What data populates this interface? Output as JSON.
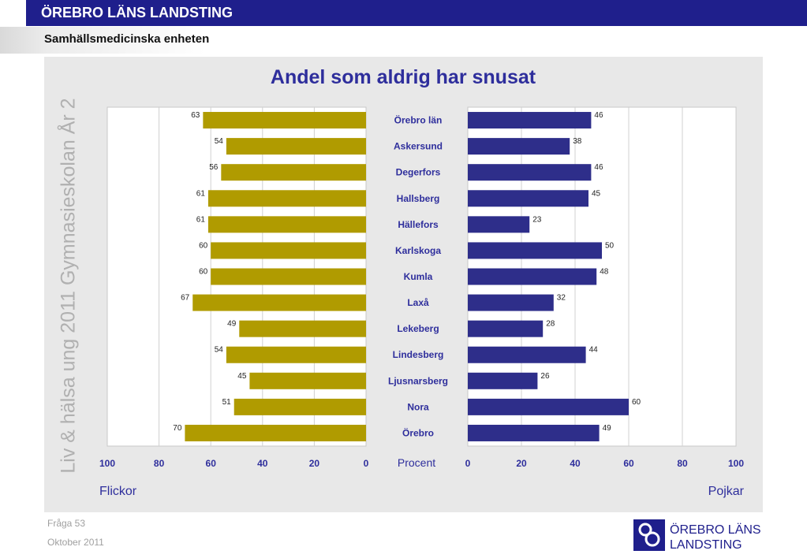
{
  "header": {
    "org_title": "ÖREBRO LÄNS LANDSTING",
    "unit_name": "Samhällsmedicinska enheten"
  },
  "side_caption": "Liv & hälsa ung 2011 Gymnasieskolan År 2",
  "footer": {
    "question": "Fråga 53",
    "date": "Oktober 2011"
  },
  "logo": {
    "line1": "ÖREBRO LÄNS",
    "line2": "LANDSTING"
  },
  "colors": {
    "header_blue": "#1f1f8c",
    "girls_bar": "#b09b00",
    "boys_bar": "#2e2e8a",
    "title": "#2e2e9c",
    "panel_bg": "#e8e8e8",
    "label_text": "#2e2e9c"
  },
  "chart_data": {
    "type": "bar",
    "title": "Andel som aldrig har snusat",
    "categories": [
      "Örebro län",
      "Askersund",
      "Degerfors",
      "Hallsberg",
      "Hällefors",
      "Karlskoga",
      "Kumla",
      "Laxå",
      "Lekeberg",
      "Lindesberg",
      "Ljusnarsberg",
      "Nora",
      "Örebro"
    ],
    "center_label": "Procent",
    "orientation": "horizontal, mirrored (back-to-back)",
    "series": [
      {
        "name": "Flickor",
        "values": [
          63,
          54,
          56,
          61,
          61,
          60,
          60,
          67,
          49,
          54,
          45,
          51,
          70
        ]
      },
      {
        "name": "Pojkar",
        "values": [
          46,
          38,
          46,
          45,
          23,
          50,
          48,
          32,
          28,
          44,
          26,
          60,
          49
        ]
      }
    ],
    "xlim": [
      0,
      100
    ],
    "left_ticks": [
      "100",
      "80",
      "60",
      "40",
      "20",
      "0"
    ],
    "right_ticks": [
      "0",
      "20",
      "40",
      "60",
      "80",
      "100"
    ],
    "grid": true,
    "legend": "bottom-left / bottom-right"
  }
}
